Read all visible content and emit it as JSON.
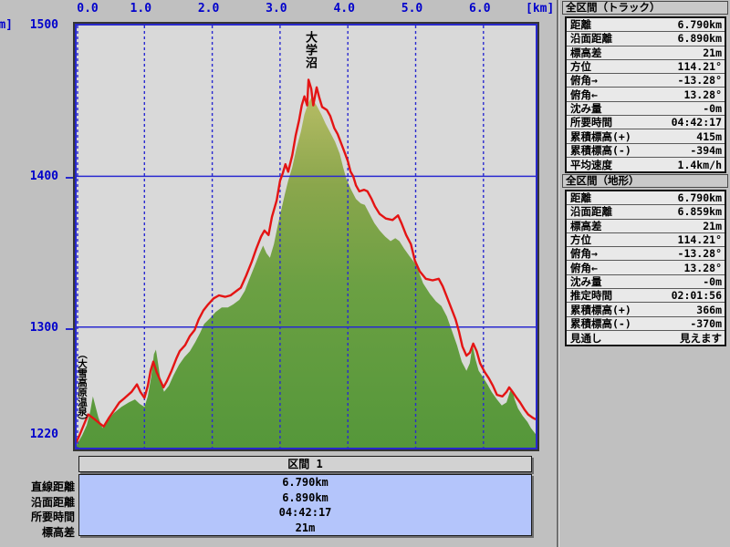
{
  "axes": {
    "top_unit": "[km]",
    "left_unit": "m]",
    "x_ticks": [
      "0.0",
      "1.0",
      "2.0",
      "3.0",
      "4.0",
      "5.0",
      "6.0"
    ],
    "y_ticks": [
      "1500",
      "1400",
      "1300",
      "1220"
    ]
  },
  "annotations": {
    "peak_label": "大学沼",
    "start_label": "（大雪高原温泉）"
  },
  "colors": {
    "window_bg": "#c0c0c0",
    "plot_bg": "#d9d9d9",
    "axis_blue": "#0000cc",
    "grid_blue": "#2a2ad0",
    "track_red": "#e41414",
    "terrain_low": "#55973a",
    "terrain_mid": "#8aa64c",
    "terrain_high": "#bcbf68",
    "info_box_blue": "#b4c5fb"
  },
  "chart_data": {
    "type": "area",
    "title": "",
    "xlabel": "[km]",
    "ylabel": "[m]",
    "xlim": [
      0,
      6.77
    ],
    "ylim": [
      1220,
      1500
    ],
    "x_gridlines_km": [
      0,
      1,
      2,
      3,
      4,
      5,
      6
    ],
    "y_gridlines_m": [
      1300,
      1400
    ],
    "series": [
      {
        "name": "terrain-profile",
        "type": "area",
        "points": [
          [
            0.0,
            1222
          ],
          [
            0.08,
            1228
          ],
          [
            0.15,
            1235
          ],
          [
            0.2,
            1244
          ],
          [
            0.24,
            1254
          ],
          [
            0.28,
            1247
          ],
          [
            0.32,
            1240
          ],
          [
            0.38,
            1233
          ],
          [
            0.46,
            1238
          ],
          [
            0.55,
            1243
          ],
          [
            0.66,
            1247
          ],
          [
            0.77,
            1250
          ],
          [
            0.86,
            1252
          ],
          [
            0.93,
            1249
          ],
          [
            1.0,
            1247
          ],
          [
            1.05,
            1254
          ],
          [
            1.1,
            1267
          ],
          [
            1.14,
            1282
          ],
          [
            1.17,
            1285
          ],
          [
            1.2,
            1276
          ],
          [
            1.24,
            1264
          ],
          [
            1.29,
            1257
          ],
          [
            1.36,
            1261
          ],
          [
            1.43,
            1268
          ],
          [
            1.51,
            1275
          ],
          [
            1.59,
            1280
          ],
          [
            1.67,
            1284
          ],
          [
            1.75,
            1290
          ],
          [
            1.82,
            1296
          ],
          [
            1.88,
            1302
          ],
          [
            1.97,
            1306
          ],
          [
            2.05,
            1310
          ],
          [
            2.14,
            1313
          ],
          [
            2.23,
            1313
          ],
          [
            2.31,
            1315
          ],
          [
            2.4,
            1318
          ],
          [
            2.48,
            1324
          ],
          [
            2.54,
            1331
          ],
          [
            2.62,
            1340
          ],
          [
            2.69,
            1348
          ],
          [
            2.75,
            1354
          ],
          [
            2.8,
            1349
          ],
          [
            2.85,
            1346
          ],
          [
            2.91,
            1355
          ],
          [
            2.96,
            1366
          ],
          [
            3.01,
            1376
          ],
          [
            3.07,
            1388
          ],
          [
            3.12,
            1397
          ],
          [
            3.18,
            1406
          ],
          [
            3.24,
            1418
          ],
          [
            3.31,
            1430
          ],
          [
            3.36,
            1441
          ],
          [
            3.42,
            1449
          ],
          [
            3.46,
            1452
          ],
          [
            3.5,
            1450
          ],
          [
            3.55,
            1446
          ],
          [
            3.61,
            1441
          ],
          [
            3.67,
            1435
          ],
          [
            3.74,
            1429
          ],
          [
            3.81,
            1423
          ],
          [
            3.88,
            1415
          ],
          [
            3.93,
            1406
          ],
          [
            3.98,
            1398
          ],
          [
            4.05,
            1391
          ],
          [
            4.12,
            1385
          ],
          [
            4.19,
            1382
          ],
          [
            4.25,
            1381
          ],
          [
            4.32,
            1375
          ],
          [
            4.39,
            1369
          ],
          [
            4.47,
            1364
          ],
          [
            4.55,
            1360
          ],
          [
            4.63,
            1357
          ],
          [
            4.7,
            1359
          ],
          [
            4.76,
            1357
          ],
          [
            4.83,
            1352
          ],
          [
            4.91,
            1347
          ],
          [
            5.01,
            1341
          ],
          [
            5.11,
            1329
          ],
          [
            5.21,
            1322
          ],
          [
            5.3,
            1317
          ],
          [
            5.38,
            1314
          ],
          [
            5.46,
            1307
          ],
          [
            5.54,
            1297
          ],
          [
            5.61,
            1288
          ],
          [
            5.68,
            1277
          ],
          [
            5.75,
            1271
          ],
          [
            5.8,
            1276
          ],
          [
            5.84,
            1288
          ],
          [
            5.88,
            1279
          ],
          [
            5.93,
            1271
          ],
          [
            5.99,
            1267
          ],
          [
            6.06,
            1262
          ],
          [
            6.12,
            1257
          ],
          [
            6.2,
            1252
          ],
          [
            6.27,
            1248
          ],
          [
            6.34,
            1250
          ],
          [
            6.39,
            1257
          ],
          [
            6.42,
            1259
          ],
          [
            6.46,
            1252
          ],
          [
            6.51,
            1246
          ],
          [
            6.58,
            1241
          ],
          [
            6.65,
            1237
          ],
          [
            6.7,
            1233
          ],
          [
            6.77,
            1229
          ]
        ]
      },
      {
        "name": "gps-track",
        "type": "line",
        "points": [
          [
            0.0,
            1224
          ],
          [
            0.05,
            1229
          ],
          [
            0.17,
            1242
          ],
          [
            0.26,
            1239
          ],
          [
            0.34,
            1236
          ],
          [
            0.4,
            1234
          ],
          [
            0.48,
            1240
          ],
          [
            0.57,
            1246
          ],
          [
            0.63,
            1250
          ],
          [
            0.71,
            1253
          ],
          [
            0.81,
            1257
          ],
          [
            0.89,
            1262
          ],
          [
            0.94,
            1257
          ],
          [
            1.0,
            1253
          ],
          [
            1.05,
            1261
          ],
          [
            1.09,
            1271
          ],
          [
            1.13,
            1277
          ],
          [
            1.18,
            1270
          ],
          [
            1.24,
            1264
          ],
          [
            1.28,
            1260
          ],
          [
            1.33,
            1264
          ],
          [
            1.4,
            1271
          ],
          [
            1.47,
            1279
          ],
          [
            1.52,
            1284
          ],
          [
            1.6,
            1288
          ],
          [
            1.67,
            1294
          ],
          [
            1.74,
            1298
          ],
          [
            1.8,
            1305
          ],
          [
            1.87,
            1311
          ],
          [
            1.94,
            1315
          ],
          [
            2.02,
            1319
          ],
          [
            2.1,
            1321
          ],
          [
            2.19,
            1320
          ],
          [
            2.27,
            1321
          ],
          [
            2.36,
            1324
          ],
          [
            2.42,
            1326
          ],
          [
            2.5,
            1334
          ],
          [
            2.58,
            1343
          ],
          [
            2.65,
            1352
          ],
          [
            2.72,
            1360
          ],
          [
            2.77,
            1364
          ],
          [
            2.83,
            1361
          ],
          [
            2.88,
            1373
          ],
          [
            2.95,
            1384
          ],
          [
            3.0,
            1397
          ],
          [
            3.04,
            1402
          ],
          [
            3.08,
            1408
          ],
          [
            3.12,
            1403
          ],
          [
            3.18,
            1414
          ],
          [
            3.23,
            1427
          ],
          [
            3.28,
            1437
          ],
          [
            3.32,
            1447
          ],
          [
            3.36,
            1453
          ],
          [
            3.4,
            1447
          ],
          [
            3.42,
            1464
          ],
          [
            3.46,
            1458
          ],
          [
            3.49,
            1447
          ],
          [
            3.54,
            1459
          ],
          [
            3.58,
            1452
          ],
          [
            3.62,
            1446
          ],
          [
            3.69,
            1444
          ],
          [
            3.74,
            1440
          ],
          [
            3.8,
            1432
          ],
          [
            3.85,
            1428
          ],
          [
            3.9,
            1422
          ],
          [
            3.96,
            1415
          ],
          [
            4.0,
            1410
          ],
          [
            4.04,
            1403
          ],
          [
            4.08,
            1400
          ],
          [
            4.12,
            1394
          ],
          [
            4.17,
            1390
          ],
          [
            4.24,
            1391
          ],
          [
            4.29,
            1390
          ],
          [
            4.35,
            1385
          ],
          [
            4.4,
            1380
          ],
          [
            4.47,
            1375
          ],
          [
            4.56,
            1372
          ],
          [
            4.66,
            1371
          ],
          [
            4.74,
            1374
          ],
          [
            4.79,
            1369
          ],
          [
            4.86,
            1361
          ],
          [
            4.93,
            1355
          ],
          [
            4.99,
            1344
          ],
          [
            5.06,
            1337
          ],
          [
            5.15,
            1332
          ],
          [
            5.25,
            1331
          ],
          [
            5.34,
            1332
          ],
          [
            5.4,
            1327
          ],
          [
            5.46,
            1320
          ],
          [
            5.53,
            1312
          ],
          [
            5.59,
            1305
          ],
          [
            5.64,
            1297
          ],
          [
            5.69,
            1287
          ],
          [
            5.75,
            1281
          ],
          [
            5.8,
            1283
          ],
          [
            5.85,
            1289
          ],
          [
            5.9,
            1284
          ],
          [
            5.95,
            1276
          ],
          [
            6.02,
            1270
          ],
          [
            6.08,
            1266
          ],
          [
            6.14,
            1261
          ],
          [
            6.2,
            1255
          ],
          [
            6.28,
            1254
          ],
          [
            6.34,
            1257
          ],
          [
            6.38,
            1260
          ],
          [
            6.43,
            1257
          ],
          [
            6.49,
            1253
          ],
          [
            6.54,
            1250
          ],
          [
            6.61,
            1245
          ],
          [
            6.66,
            1242
          ],
          [
            6.72,
            1240
          ],
          [
            6.76,
            1239
          ]
        ]
      }
    ]
  },
  "section_table": {
    "title": "区間 1",
    "rows": [
      {
        "label": "直線距離",
        "value": "6.790km"
      },
      {
        "label": "沿面距離",
        "value": "6.890km"
      },
      {
        "label": "所要時間",
        "value": "04:42:17"
      },
      {
        "label": "標高差",
        "value": "21m"
      }
    ]
  },
  "panel": {
    "sections": [
      {
        "title": "全区間（トラック）",
        "rows": [
          {
            "label": "距離",
            "value": "6.790km"
          },
          {
            "label": "沿面距離",
            "value": "6.890km"
          },
          {
            "label": "標高差",
            "value": "21m"
          },
          {
            "label": "方位",
            "value": "114.21°"
          },
          {
            "label": "俯角→",
            "value": "-13.28°"
          },
          {
            "label": "俯角←",
            "value": "13.28°"
          },
          {
            "label": "沈み量",
            "value": "-0m"
          },
          {
            "label": "所要時間",
            "value": "04:42:17"
          },
          {
            "label": "累積標高(+)",
            "value": "415m"
          },
          {
            "label": "累積標高(-)",
            "value": "-394m"
          },
          {
            "label": "平均速度",
            "value": "1.4km/h"
          }
        ]
      },
      {
        "title": "全区間（地形）",
        "rows": [
          {
            "label": "距離",
            "value": "6.790km"
          },
          {
            "label": "沿面距離",
            "value": "6.859km"
          },
          {
            "label": "標高差",
            "value": "21m"
          },
          {
            "label": "方位",
            "value": "114.21°"
          },
          {
            "label": "俯角→",
            "value": "-13.28°"
          },
          {
            "label": "俯角←",
            "value": "13.28°"
          },
          {
            "label": "沈み量",
            "value": "-0m"
          },
          {
            "label": "推定時間",
            "value": "02:01:56"
          },
          {
            "label": "累積標高(+)",
            "value": "366m"
          },
          {
            "label": "累積標高(-)",
            "value": "-370m"
          },
          {
            "label": "見通し",
            "value": "見えます"
          }
        ]
      }
    ]
  }
}
